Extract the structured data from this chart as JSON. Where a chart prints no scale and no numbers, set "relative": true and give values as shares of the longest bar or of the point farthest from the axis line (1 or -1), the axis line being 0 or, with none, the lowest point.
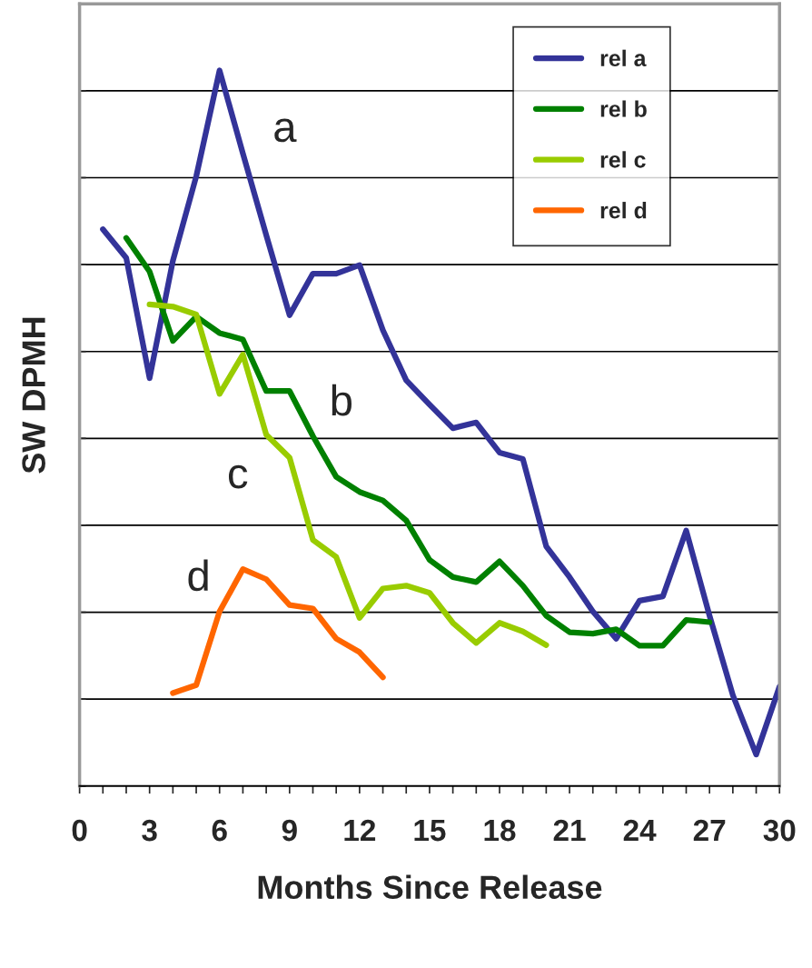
{
  "chart_data": {
    "type": "line",
    "relative": true,
    "ylabel": "SW DPMH",
    "xlabel": "Months Since Release",
    "xlim": [
      0,
      30
    ],
    "xticks": [
      0,
      {
        "value": 1,
        "label": null
      },
      {
        "value": 2,
        "label": null
      },
      3,
      {
        "value": 4,
        "label": null
      },
      {
        "value": 5,
        "label": null
      },
      6,
      {
        "value": 7,
        "label": null
      },
      {
        "value": 8,
        "label": null
      },
      9,
      {
        "value": 10,
        "label": null
      },
      {
        "value": 11,
        "label": null
      },
      12,
      {
        "value": 13,
        "label": null
      },
      {
        "value": 14,
        "label": null
      },
      15,
      {
        "value": 16,
        "label": null
      },
      {
        "value": 17,
        "label": null
      },
      18,
      {
        "value": 19,
        "label": null
      },
      {
        "value": 20,
        "label": null
      },
      21,
      {
        "value": 22,
        "label": null
      },
      {
        "value": 23,
        "label": null
      },
      24,
      {
        "value": 25,
        "label": null
      },
      {
        "value": 26,
        "label": null
      },
      27,
      {
        "value": 28,
        "label": null
      },
      {
        "value": 29,
        "label": null
      },
      30
    ],
    "tick_labels": "x",
    "grid": "y",
    "legend": "top right",
    "marker": "none",
    "line_style": "solid",
    "series": [
      {
        "name": "rel a",
        "color": "#333399",
        "x": [
          1,
          2,
          3,
          4,
          5,
          6,
          7,
          8,
          9,
          10,
          11,
          12,
          13,
          14,
          15,
          16,
          17,
          18,
          19,
          20,
          21,
          22,
          23,
          24,
          25,
          26,
          27,
          28,
          29,
          30
        ],
        "values": [
          0.778,
          0.738,
          0.57,
          0.734,
          0.852,
          1.0,
          0.884,
          0.77,
          0.658,
          0.716,
          0.716,
          0.728,
          0.637,
          0.567,
          0.533,
          0.5,
          0.508,
          0.466,
          0.457,
          0.335,
          0.292,
          0.244,
          0.206,
          0.259,
          0.265,
          0.357,
          0.238,
          0.127,
          0.044,
          0.139
        ]
      },
      {
        "name": "rel b",
        "color": "#008000",
        "x": [
          2,
          3,
          4,
          5,
          6,
          7,
          8,
          9,
          10,
          11,
          12,
          13,
          14,
          15,
          16,
          17,
          18,
          19,
          20,
          21,
          22,
          23,
          24,
          25,
          26,
          27
        ],
        "values": [
          0.766,
          0.719,
          0.622,
          0.656,
          0.633,
          0.624,
          0.552,
          0.552,
          0.489,
          0.432,
          0.411,
          0.399,
          0.371,
          0.316,
          0.292,
          0.285,
          0.314,
          0.28,
          0.238,
          0.215,
          0.213,
          0.219,
          0.196,
          0.196,
          0.232,
          0.229
        ]
      },
      {
        "name": "rel c",
        "color": "#99cc00",
        "x": [
          3,
          4,
          5,
          6,
          7,
          8,
          9,
          10,
          11,
          12,
          13,
          14,
          15,
          16,
          17,
          18,
          19,
          20
        ],
        "values": [
          0.673,
          0.67,
          0.659,
          0.548,
          0.603,
          0.491,
          0.459,
          0.344,
          0.32,
          0.235,
          0.276,
          0.28,
          0.27,
          0.228,
          0.2,
          0.228,
          0.216,
          0.197
        ]
      },
      {
        "name": "rel d",
        "color": "#ff6600",
        "x": [
          4,
          5,
          6,
          7,
          8,
          9,
          10,
          11,
          12,
          13
        ],
        "values": [
          0.13,
          0.141,
          0.244,
          0.303,
          0.289,
          0.253,
          0.248,
          0.206,
          0.187,
          0.152
        ]
      }
    ],
    "annotations": [
      "a",
      "b",
      "c",
      "d"
    ]
  }
}
